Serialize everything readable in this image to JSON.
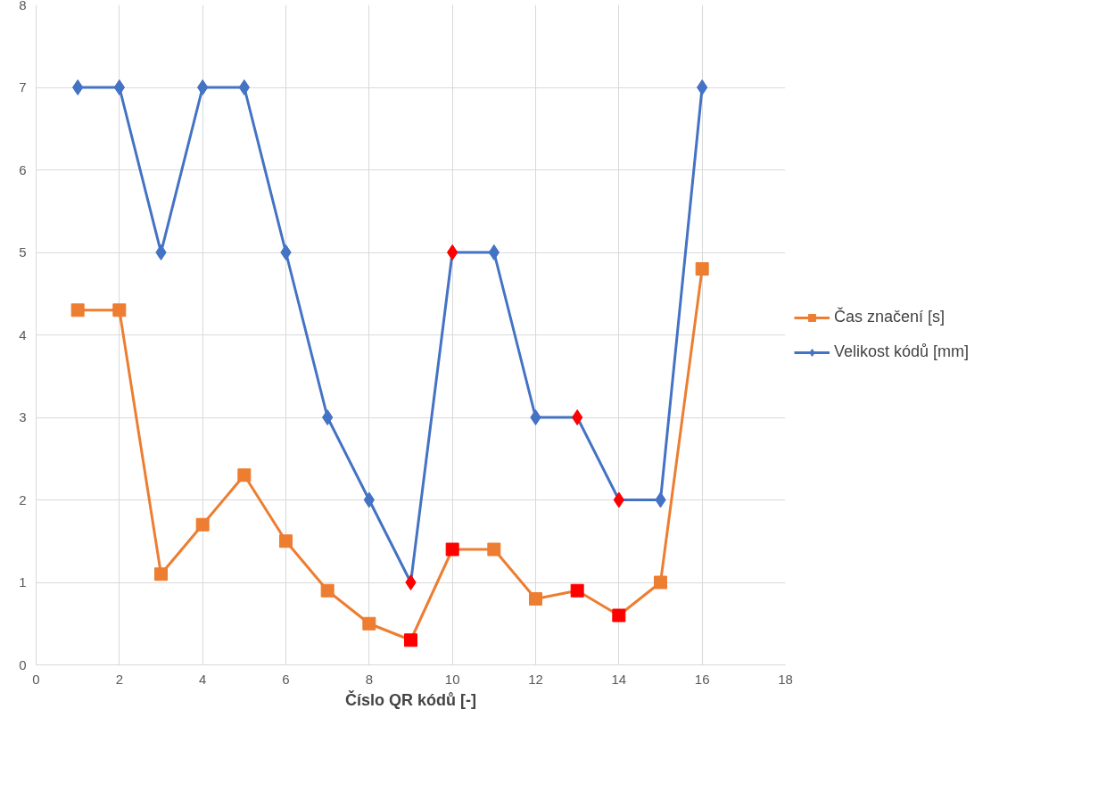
{
  "chart_data": {
    "type": "line",
    "xlabel": "Číslo QR kódů [-]",
    "x": [
      1,
      2,
      3,
      4,
      5,
      6,
      7,
      8,
      9,
      10,
      11,
      12,
      13,
      14,
      15,
      16
    ],
    "series": [
      {
        "name": "Čas značení [s]",
        "color": "#ed7d31",
        "marker": "square",
        "values": [
          4.3,
          4.3,
          1.1,
          1.7,
          2.3,
          1.5,
          0.9,
          0.5,
          0.3,
          1.4,
          1.4,
          0.8,
          0.9,
          0.6,
          1.0,
          4.8
        ],
        "colors": [
          "#ed7d31",
          "#ed7d31",
          "#ed7d31",
          "#ed7d31",
          "#ed7d31",
          "#ed7d31",
          "#ed7d31",
          "#ed7d31",
          "#ff0000",
          "#ff0000",
          "#ed7d31",
          "#ed7d31",
          "#ff0000",
          "#ff0000",
          "#ed7d31",
          "#ed7d31"
        ]
      },
      {
        "name": "Velikost kódů [mm]",
        "color": "#4472c4",
        "marker": "diamond",
        "values": [
          7,
          7,
          5,
          7,
          7,
          5,
          3,
          2,
          1,
          5,
          5,
          3,
          3,
          2,
          2,
          7
        ],
        "colors": [
          "#4472c4",
          "#4472c4",
          "#4472c4",
          "#4472c4",
          "#4472c4",
          "#4472c4",
          "#4472c4",
          "#4472c4",
          "#ff0000",
          "#ff0000",
          "#4472c4",
          "#4472c4",
          "#ff0000",
          "#ff0000",
          "#4472c4",
          "#4472c4"
        ]
      }
    ],
    "xlim": [
      0,
      18
    ],
    "xticks": [
      0,
      2,
      4,
      6,
      8,
      10,
      12,
      14,
      16,
      18
    ],
    "ylim": [
      0,
      8
    ],
    "yticks": [
      0,
      1,
      2,
      3,
      4,
      5,
      6,
      7,
      8
    ],
    "grid": true,
    "legend": "right",
    "line_style": "solid"
  }
}
